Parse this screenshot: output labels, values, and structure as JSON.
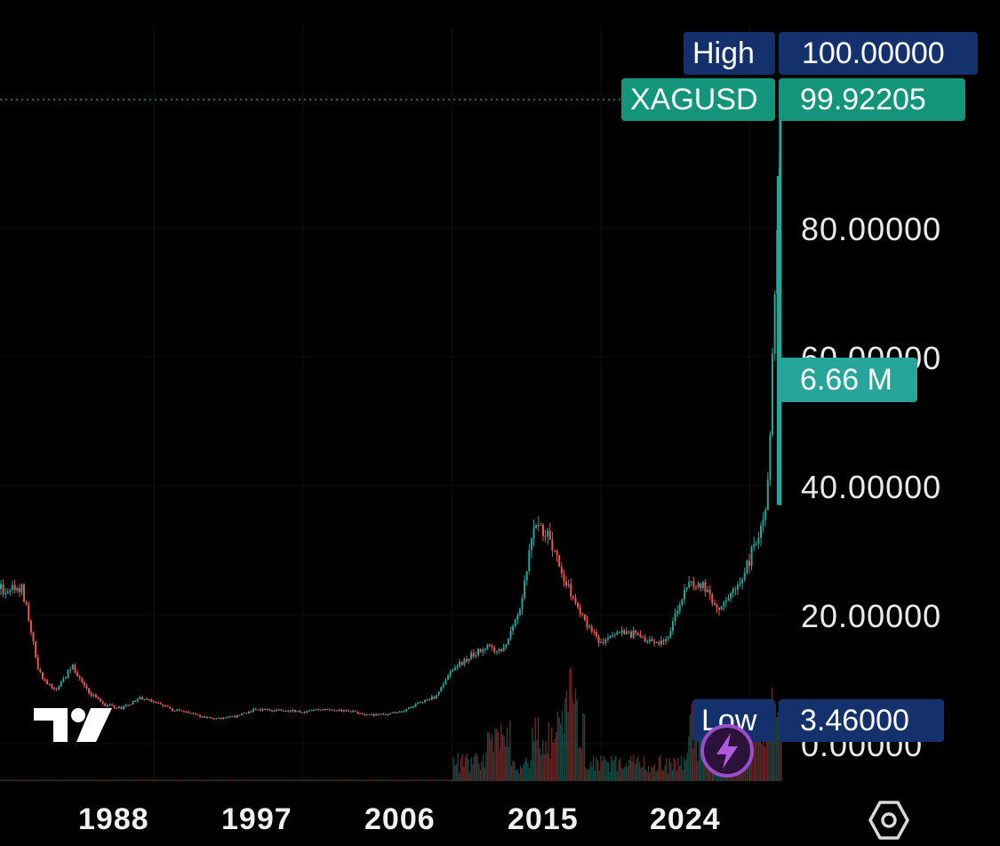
{
  "colors": {
    "up": "#26a69a",
    "down": "#ef5350",
    "navy": "#14316e",
    "teal": "#13957c",
    "bolt": "#9c4dcc"
  },
  "price_axis": {
    "labels": [
      "80.00000",
      "60.00000",
      "40.00000",
      "20.00000",
      "0.00000"
    ],
    "values": [
      80,
      60,
      40,
      20,
      0
    ]
  },
  "tags": {
    "high": {
      "name": "High",
      "value": "100.00000"
    },
    "symbol": {
      "name": "XAGUSD",
      "value": "99.92205"
    },
    "volume": {
      "value": "6.66 M"
    },
    "low": {
      "name": "Low",
      "value": "3.46000"
    }
  },
  "time_axis": {
    "labels": [
      "1988",
      "1997",
      "2006",
      "2015",
      "2024"
    ]
  },
  "icons": {
    "logo": "tradingview-logo-icon",
    "bolt": "lightning-bolt-icon",
    "settings": "settings-hexagon-icon"
  },
  "chart_data": {
    "type": "line",
    "x": [
      1980,
      1981,
      1982,
      1983,
      1984,
      1985,
      1986,
      1987,
      1988,
      1989,
      1990,
      1991,
      1992,
      1993,
      1994,
      1995,
      1996,
      1997,
      1998,
      1999,
      2000,
      2001,
      2002,
      2003,
      2004,
      2005,
      2006,
      2007,
      2008,
      2009,
      2010,
      2011,
      2012,
      2013,
      2014,
      2015,
      2016,
      2017,
      2018,
      2019,
      2020,
      2021,
      2022,
      2023,
      2024,
      2025,
      2025.9
    ],
    "y": [
      24,
      11,
      8,
      12,
      8,
      6,
      5.5,
      7,
      6.5,
      5.3,
      4.8,
      4.0,
      3.9,
      4.3,
      5.3,
      5.2,
      5.2,
      4.9,
      5.5,
      5.2,
      5.0,
      4.4,
      4.6,
      4.9,
      6.5,
      7.3,
      11.5,
      13.5,
      15,
      14.5,
      20,
      35,
      31,
      24,
      19,
      15.5,
      17,
      17,
      15.5,
      16,
      24,
      25,
      21,
      23.5,
      29,
      37,
      99.92
    ],
    "ylim": [
      0,
      105
    ],
    "xlim": [
      1978.7,
      2026.5
    ],
    "grid": true
  }
}
